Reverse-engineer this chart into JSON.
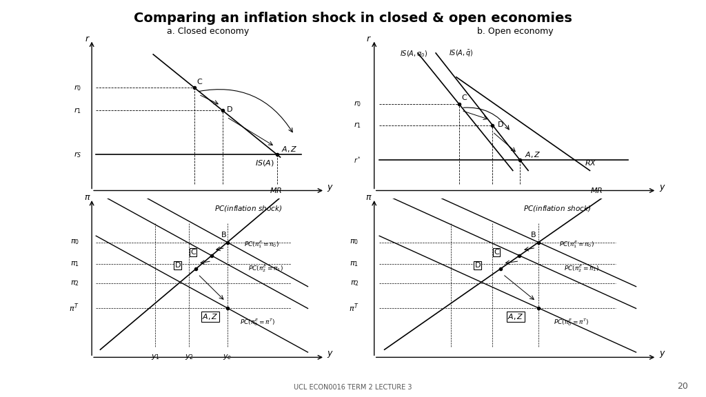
{
  "title": "Comparing an inflation shock in closed & open economies",
  "title_fontsize": 14,
  "title_fontweight": "bold",
  "subtitle_left": "a. Closed economy",
  "subtitle_right": "b. Open economy",
  "footer": "UCL ECON0016 TERM 2 LECTURE 3",
  "page_num": "20",
  "bg_color": "#ffffff"
}
